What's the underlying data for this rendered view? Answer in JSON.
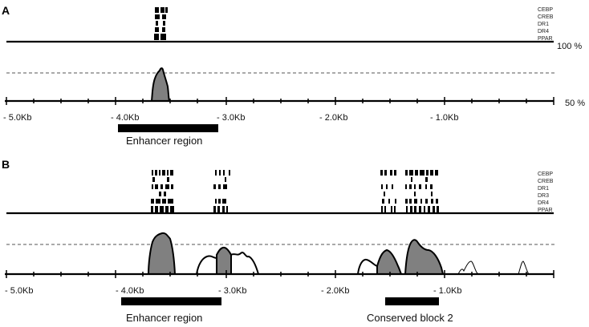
{
  "panels": [
    {
      "id": "A",
      "label": "A",
      "tf_tracks": [
        "CEBP",
        "CREB",
        "DR1",
        "DR4",
        "PPAR"
      ],
      "top_percent": "100 %",
      "bottom_percent": "50 %",
      "axis_ticks": [
        "- 5.0Kb",
        "- 4.0Kb",
        "- 3.0Kb",
        "- 2.0Kb",
        "- 1.0Kb"
      ],
      "regions": [
        {
          "name": "Enhancer region",
          "start_kb": -3.95,
          "end_kb": -3.02
        }
      ],
      "conservation_peaks_note": "single conserved peak near -3.65Kb"
    },
    {
      "id": "B",
      "label": "B",
      "tf_tracks": [
        "CEBP",
        "CREB",
        "DR1",
        "DR3",
        "DR4",
        "PPAR"
      ],
      "axis_ticks": [
        "- 5.0Kb",
        "- 4.0Kb",
        "- 3.0Kb",
        "- 2.0Kb",
        "- 1.0Kb"
      ],
      "regions": [
        {
          "name": "Enhancer region",
          "start_kb": -3.95,
          "end_kb": -3.02
        },
        {
          "name": "Conserved block 2",
          "start_kb": -1.55,
          "end_kb": -1.05
        }
      ]
    }
  ],
  "colors": {
    "line": "#000000",
    "peak_fill": "#808080",
    "dashed": "#555555"
  }
}
